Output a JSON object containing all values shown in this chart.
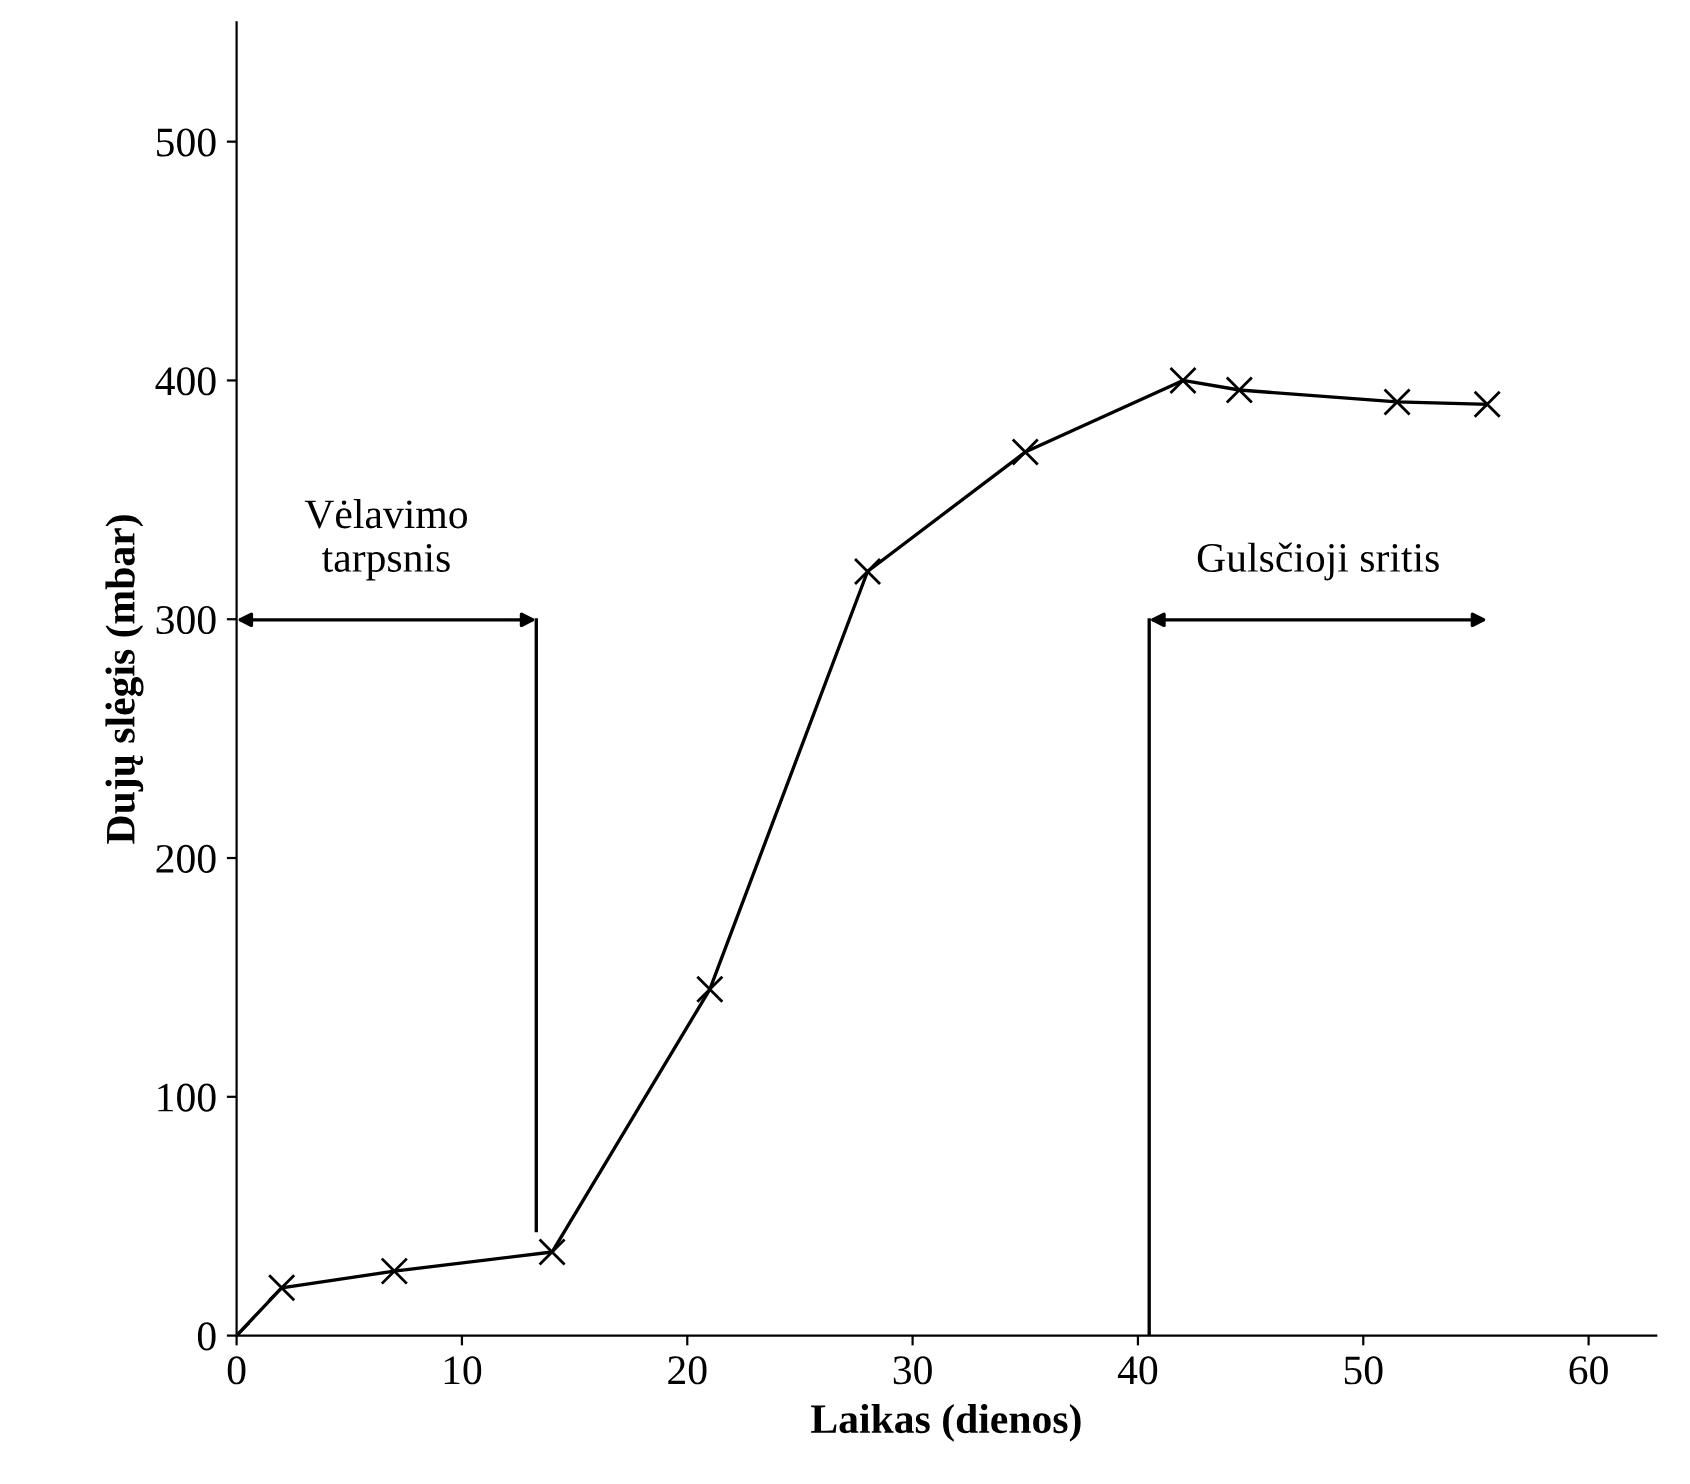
{
  "chart_data": {
    "type": "line",
    "xlabel": "Laikas (dienos)",
    "ylabel": "Dujų slėgis (mbar)",
    "x": [
      0,
      2,
      7,
      14,
      21,
      28,
      35,
      42,
      44.5,
      51.5,
      55.5
    ],
    "series": [
      {
        "color": "#000000",
        "values": [
          0,
          20,
          27,
          35,
          145,
          320,
          370,
          400,
          396,
          391,
          390
        ]
      }
    ],
    "marker": "cross",
    "line_style": "solid",
    "grid": false,
    "legend": false,
    "xlim": [
      0,
      63
    ],
    "xticks": [
      0,
      10,
      20,
      30,
      40,
      50,
      60
    ],
    "ylim": [
      0,
      550
    ],
    "yticks": [
      0,
      100,
      200,
      300,
      400,
      500
    ],
    "ref_lines": [
      {
        "axis": "x",
        "value": 13.3,
        "color": "#000000",
        "label": "Vėlavimo\ntarpsnis"
      },
      {
        "axis": "x",
        "value": 40.5,
        "color": "#000000",
        "label": "Gulsčioji sritis"
      }
    ]
  }
}
